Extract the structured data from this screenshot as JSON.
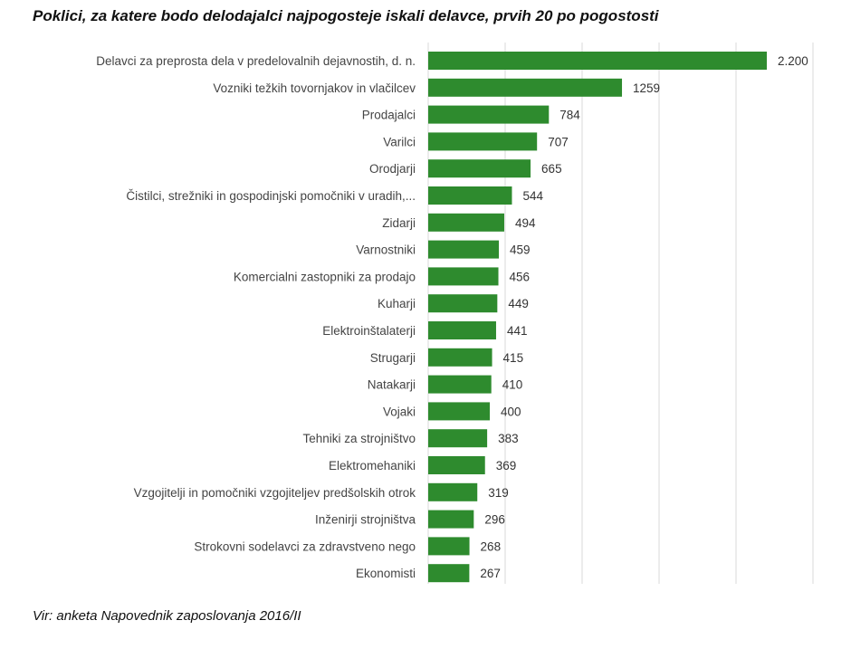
{
  "chart_data": {
    "type": "bar",
    "orientation": "horizontal",
    "title": "Poklici, za katere bodo delodajalci najpogosteje iskali delavce, prvih 20 po pogostosti",
    "source": "Vir: anketa Napovednik zaposlovanja 2016/II",
    "xlim": [
      0,
      2500
    ],
    "grid": true,
    "bar_color": "#2e8b2e",
    "categories": [
      "Delavci za preprosta dela v predelovalnih dejavnostih, d. n.",
      "Vozniki težkih tovornjakov in vlačilcev",
      "Prodajalci",
      "Varilci",
      "Orodjarji",
      "Čistilci, strežniki in gospodinjski pomočniki v uradih,...",
      "Zidarji",
      "Varnostniki",
      "Komercialni zastopniki za prodajo",
      "Kuharji",
      "Elektroinštalaterji",
      "Strugarji",
      "Natakarji",
      "Vojaki",
      "Tehniki za strojništvo",
      "Elektromehaniki",
      "Vzgojitelji in pomočniki vzgojiteljev predšolskih otrok",
      "Inženirji strojništva",
      "Strokovni sodelavci za zdravstveno nego",
      "Ekonomisti"
    ],
    "values": [
      2200,
      1259,
      784,
      707,
      665,
      544,
      494,
      459,
      456,
      449,
      441,
      415,
      410,
      400,
      383,
      369,
      319,
      296,
      268,
      267
    ],
    "data_labels": [
      "2.200",
      "1259",
      "784",
      "707",
      "665",
      "544",
      "494",
      "459",
      "456",
      "449",
      "441",
      "415",
      "410",
      "400",
      "383",
      "369",
      "319",
      "296",
      "268",
      "267"
    ]
  }
}
